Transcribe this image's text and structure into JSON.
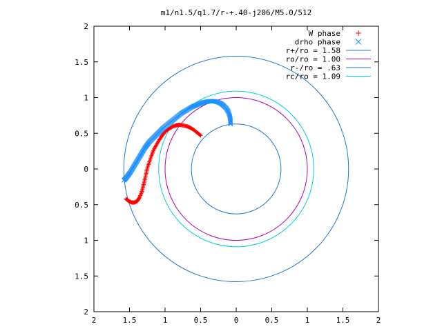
{
  "chart_data": {
    "type": "scatter",
    "title": "m1/n1.5/q1.7/r-+.40-j206/M5.0/512",
    "xlim": [
      -2,
      2
    ],
    "ylim": [
      -2,
      2
    ],
    "x_ticks": [
      {
        "value": -2,
        "label": "2"
      },
      {
        "value": -1.5,
        "label": "1.5"
      },
      {
        "value": -1,
        "label": "1"
      },
      {
        "value": -0.5,
        "label": "0.5"
      },
      {
        "value": 0,
        "label": "0"
      },
      {
        "value": 0.5,
        "label": "0.5"
      },
      {
        "value": 1,
        "label": "1"
      },
      {
        "value": 1.5,
        "label": "1.5"
      },
      {
        "value": 2,
        "label": "2"
      }
    ],
    "y_ticks": [
      {
        "value": 2,
        "label": "2"
      },
      {
        "value": 1.5,
        "label": "1.5"
      },
      {
        "value": 1,
        "label": "1"
      },
      {
        "value": 0.5,
        "label": "0.5"
      },
      {
        "value": 0,
        "label": "0"
      },
      {
        "value": -0.5,
        "label": "0.5"
      },
      {
        "value": -1,
        "label": "1"
      },
      {
        "value": -1.5,
        "label": "1.5"
      },
      {
        "value": -2,
        "label": "2"
      }
    ],
    "grid": false,
    "legend_position": "top-right",
    "series": [
      {
        "name": "W phase",
        "marker": "plus",
        "color": "#ff0000",
        "points": [
          [
            -1.55,
            -0.42
          ],
          [
            -1.51,
            -0.45
          ],
          [
            -1.47,
            -0.47
          ],
          [
            -1.43,
            -0.47
          ],
          [
            -1.39,
            -0.45
          ],
          [
            -1.36,
            -0.4
          ],
          [
            -1.33,
            -0.33
          ],
          [
            -1.31,
            -0.25
          ],
          [
            -1.29,
            -0.17
          ],
          [
            -1.27,
            -0.08
          ],
          [
            -1.25,
            0.01
          ],
          [
            -1.22,
            0.1
          ],
          [
            -1.19,
            0.19
          ],
          [
            -1.16,
            0.27
          ],
          [
            -1.12,
            0.34
          ],
          [
            -1.08,
            0.41
          ],
          [
            -1.04,
            0.47
          ],
          [
            -1.0,
            0.52
          ],
          [
            -0.95,
            0.56
          ],
          [
            -0.9,
            0.59
          ],
          [
            -0.85,
            0.61
          ],
          [
            -0.8,
            0.62
          ],
          [
            -0.75,
            0.61
          ],
          [
            -0.7,
            0.6
          ],
          [
            -0.65,
            0.58
          ],
          [
            -0.6,
            0.55
          ],
          [
            -0.55,
            0.51
          ],
          [
            -0.5,
            0.47
          ]
        ]
      },
      {
        "name": "drho phase",
        "marker": "cross",
        "color": "#1e90ff",
        "points": [
          [
            -1.58,
            -0.16
          ],
          [
            -1.55,
            -0.13
          ],
          [
            -1.52,
            -0.09
          ],
          [
            -1.49,
            -0.05
          ],
          [
            -1.46,
            0.0
          ],
          [
            -1.43,
            0.05
          ],
          [
            -1.4,
            0.1
          ],
          [
            -1.37,
            0.15
          ],
          [
            -1.34,
            0.2
          ],
          [
            -1.31,
            0.25
          ],
          [
            -1.28,
            0.3
          ],
          [
            -1.25,
            0.34
          ],
          [
            -1.22,
            0.38
          ],
          [
            -1.18,
            0.42
          ],
          [
            -1.14,
            0.46
          ],
          [
            -1.1,
            0.5
          ],
          [
            -1.06,
            0.54
          ],
          [
            -1.02,
            0.58
          ],
          [
            -0.97,
            0.62
          ],
          [
            -0.92,
            0.66
          ],
          [
            -0.87,
            0.7
          ],
          [
            -0.82,
            0.74
          ],
          [
            -0.77,
            0.78
          ],
          [
            -0.72,
            0.81
          ],
          [
            -0.67,
            0.84
          ],
          [
            -0.62,
            0.87
          ],
          [
            -0.57,
            0.89
          ],
          [
            -0.52,
            0.91
          ],
          [
            -0.47,
            0.93
          ],
          [
            -0.42,
            0.94
          ],
          [
            -0.37,
            0.95
          ],
          [
            -0.32,
            0.95
          ],
          [
            -0.27,
            0.94
          ],
          [
            -0.22,
            0.92
          ],
          [
            -0.18,
            0.89
          ],
          [
            -0.14,
            0.85
          ],
          [
            -0.11,
            0.8
          ],
          [
            -0.09,
            0.74
          ],
          [
            -0.08,
            0.68
          ],
          [
            -0.08,
            0.63
          ]
        ]
      },
      {
        "name": "r+/ro = 1.58",
        "type": "circle",
        "radius": 1.58,
        "color": "#1f77c8"
      },
      {
        "name": "ro/ro = 1.00",
        "type": "circle",
        "radius": 1.0,
        "color": "#b000b0"
      },
      {
        "name": "r-/ro = .63",
        "type": "circle",
        "radius": 0.63,
        "color": "#1f77c8"
      },
      {
        "name": "rc/ro = 1.09",
        "type": "circle",
        "radius": 1.09,
        "color": "#00d0d0"
      }
    ]
  }
}
